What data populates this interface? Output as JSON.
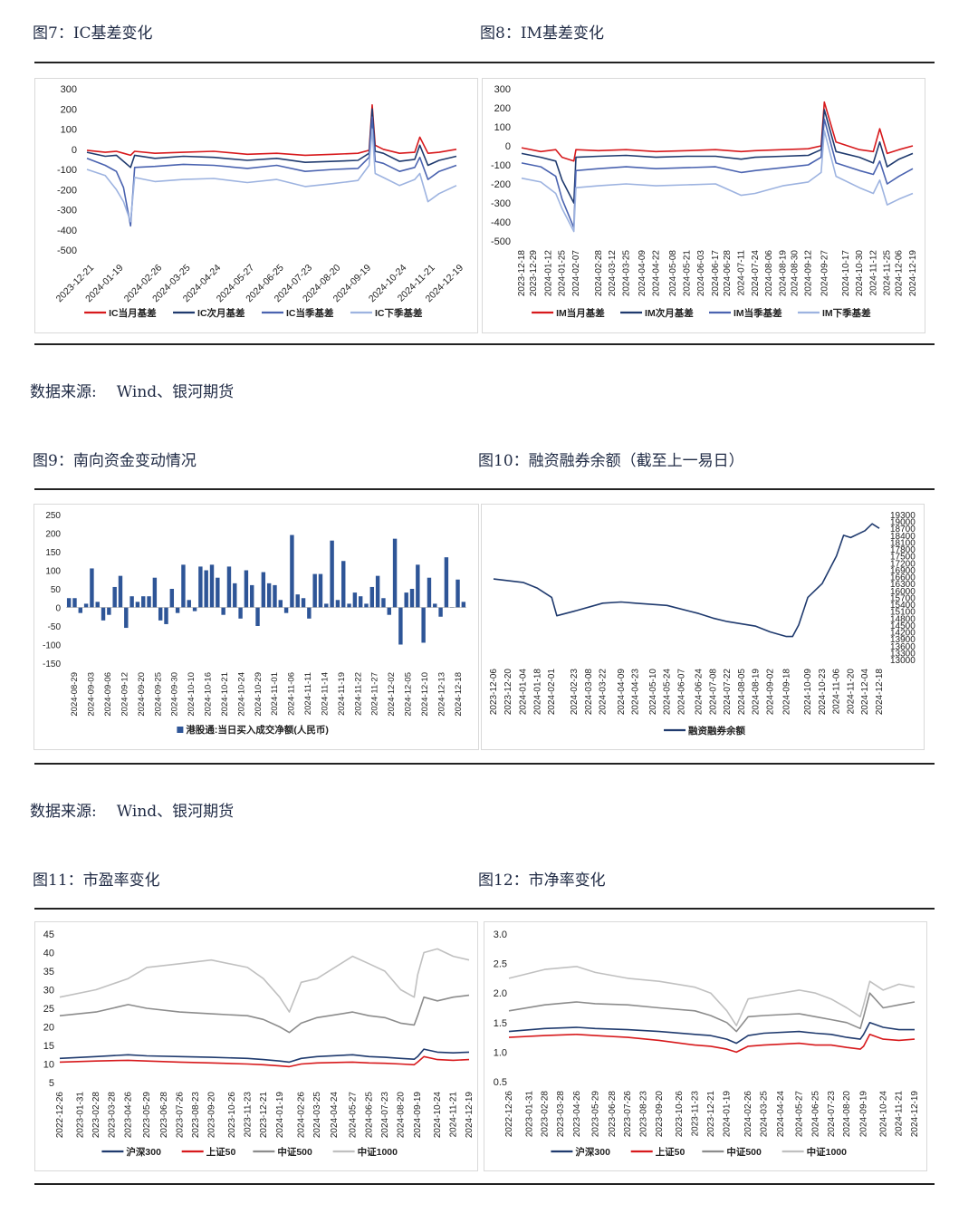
{
  "captions": {
    "c7": "图7：IC基差变化",
    "c8": "图8：IM基差变化",
    "c9": "图9：南向资金变动情况",
    "c10": "图10：融资融券余额（截至上一易日）",
    "c11": "图11：市盈率变化",
    "c12": "图12：市净率变化"
  },
  "source": {
    "label": "数据来源:",
    "text": "Wind、银河期货"
  },
  "chart_data": [
    {
      "id": "ic",
      "type": "line",
      "yticks": [
        300,
        200,
        100,
        0,
        -100,
        -200,
        -300,
        -400,
        -500
      ],
      "ylim": [
        -500,
        300
      ],
      "xticks": [
        "2023-12-21",
        "2024-01-19",
        "2024-02-26",
        "2024-03-25",
        "2024-04-24",
        "2024-05-27",
        "2024-06-25",
        "2024-07-23",
        "2024-08-20",
        "2024-09-19",
        "2024-10-24",
        "2024-11-21",
        "2024-12-19"
      ],
      "x": [
        "2023-12-21",
        "2024-01-08",
        "2024-01-19",
        "2024-01-26",
        "2024-02-02",
        "2024-02-06",
        "2024-02-26",
        "2024-03-25",
        "2024-04-24",
        "2024-05-27",
        "2024-06-25",
        "2024-07-23",
        "2024-08-20",
        "2024-09-13",
        "2024-09-24",
        "2024-09-27",
        "2024-09-30",
        "2024-10-08",
        "2024-10-24",
        "2024-11-08",
        "2024-11-13",
        "2024-11-21",
        "2024-12-02",
        "2024-12-19"
      ],
      "series": [
        {
          "name": "IC当月基差",
          "color": "#d7191c",
          "values": [
            -5,
            -15,
            -10,
            -20,
            -30,
            -10,
            -20,
            -15,
            -10,
            -25,
            -20,
            -30,
            -25,
            -20,
            -5,
            220,
            20,
            0,
            -20,
            -15,
            60,
            -20,
            -15,
            0
          ]
        },
        {
          "name": "IC次月基差",
          "color": "#1f3a6e",
          "values": [
            -15,
            -35,
            -30,
            -60,
            -90,
            -30,
            -45,
            -35,
            -40,
            -55,
            -45,
            -65,
            -60,
            -55,
            -20,
            200,
            -10,
            -20,
            -60,
            -50,
            20,
            -80,
            -55,
            -35
          ]
        },
        {
          "name": "IC当季基差",
          "color": "#4a63b0",
          "values": [
            -45,
            -80,
            -110,
            -190,
            -380,
            -90,
            -85,
            -75,
            -80,
            -95,
            -80,
            -110,
            -100,
            -95,
            -40,
            160,
            -60,
            -70,
            -110,
            -90,
            -40,
            -150,
            -110,
            -80
          ]
        },
        {
          "name": "IC下季基差",
          "color": "#9db3e0",
          "values": [
            -100,
            -130,
            -200,
            -260,
            -360,
            -140,
            -160,
            -150,
            -145,
            -165,
            -150,
            -185,
            -170,
            -155,
            -80,
            100,
            -120,
            -140,
            -180,
            -150,
            -120,
            -260,
            -220,
            -180
          ]
        }
      ]
    },
    {
      "id": "im",
      "type": "line",
      "yticks": [
        300,
        200,
        100,
        0,
        -100,
        -200,
        -300,
        -400,
        -500
      ],
      "ylim": [
        -500,
        300
      ],
      "xticks": [
        "2023-12-18",
        "2023-12-29",
        "2024-01-12",
        "2024-01-25",
        "2024-02-07",
        "2024-02-28",
        "2024-03-12",
        "2024-03-25",
        "2024-04-09",
        "2024-04-22",
        "2024-05-08",
        "2024-05-21",
        "2024-06-03",
        "2024-06-17",
        "2024-06-28",
        "2024-07-11",
        "2024-07-24",
        "2024-08-06",
        "2024-08-19",
        "2024-08-30",
        "2024-09-12",
        "2024-09-27",
        "2024-10-17",
        "2024-10-30",
        "2024-11-12",
        "2024-11-25",
        "2024-12-06",
        "2024-12-19"
      ],
      "x": [
        "2023-12-18",
        "2024-01-05",
        "2024-01-19",
        "2024-01-25",
        "2024-02-05",
        "2024-02-07",
        "2024-02-28",
        "2024-03-25",
        "2024-04-22",
        "2024-05-21",
        "2024-06-17",
        "2024-07-11",
        "2024-07-24",
        "2024-08-19",
        "2024-09-12",
        "2024-09-24",
        "2024-09-27",
        "2024-10-08",
        "2024-10-30",
        "2024-11-12",
        "2024-11-18",
        "2024-11-25",
        "2024-12-06",
        "2024-12-19"
      ],
      "series": [
        {
          "name": "IM当月基差",
          "color": "#d7191c",
          "values": [
            -10,
            -30,
            -20,
            -60,
            -80,
            -20,
            -25,
            -20,
            -30,
            -25,
            -20,
            -30,
            -25,
            -20,
            -15,
            0,
            230,
            20,
            -20,
            -30,
            90,
            -40,
            -20,
            0
          ]
        },
        {
          "name": "IM次月基差",
          "color": "#1f3a6e",
          "values": [
            -40,
            -60,
            -80,
            -180,
            -300,
            -60,
            -55,
            -50,
            -60,
            -55,
            -55,
            -70,
            -60,
            -55,
            -50,
            -20,
            190,
            -30,
            -60,
            -90,
            20,
            -110,
            -70,
            -40
          ]
        },
        {
          "name": "IM当季基差",
          "color": "#4a63b0",
          "values": [
            -90,
            -110,
            -160,
            -280,
            -430,
            -130,
            -120,
            -110,
            -120,
            -115,
            -110,
            -140,
            -130,
            -115,
            -100,
            -60,
            140,
            -90,
            -130,
            -150,
            -80,
            -200,
            -160,
            -120
          ]
        },
        {
          "name": "IM下季基差",
          "color": "#9db3e0",
          "values": [
            -170,
            -190,
            -250,
            -330,
            -450,
            -220,
            -210,
            -200,
            -210,
            -205,
            -200,
            -260,
            -250,
            -210,
            -190,
            -140,
            80,
            -160,
            -220,
            -250,
            -180,
            -310,
            -280,
            -250
          ]
        }
      ]
    },
    {
      "id": "south",
      "type": "bar",
      "yticks": [
        250,
        200,
        150,
        100,
        50,
        0,
        -50,
        -100,
        -150
      ],
      "ylim": [
        -150,
        250
      ],
      "xticks": [
        "2024-08-29",
        "2024-09-03",
        "2024-09-06",
        "2024-09-12",
        "2024-09-20",
        "2024-09-25",
        "2024-09-30",
        "2024-10-10",
        "2024-10-16",
        "2024-10-21",
        "2024-10-24",
        "2024-10-29",
        "2024-11-01",
        "2024-11-06",
        "2024-11-11",
        "2024-11-14",
        "2024-11-19",
        "2024-11-22",
        "2024-11-27",
        "2024-12-02",
        "2024-12-05",
        "2024-12-10",
        "2024-12-13",
        "2024-12-18"
      ],
      "values": [
        25,
        25,
        -15,
        10,
        105,
        15,
        -35,
        -20,
        55,
        85,
        -55,
        30,
        15,
        30,
        30,
        80,
        -35,
        -45,
        50,
        -15,
        115,
        20,
        -10,
        110,
        100,
        115,
        80,
        -20,
        110,
        65,
        -30,
        100,
        60,
        -50,
        95,
        65,
        60,
        20,
        -15,
        195,
        35,
        25,
        -30,
        90,
        90,
        10,
        180,
        20,
        125,
        10,
        40,
        30,
        10,
        55,
        85,
        25,
        -20,
        185,
        -100,
        40,
        50,
        115,
        -95,
        80,
        10,
        -25,
        135,
        0,
        75,
        15
      ],
      "legend": "港股通:当日买入成交净额(人民币)",
      "color": "#2e5597"
    },
    {
      "id": "margin",
      "type": "line",
      "yticks": [
        19300,
        19000,
        18700,
        18400,
        18100,
        17800,
        17500,
        17200,
        16900,
        16600,
        16300,
        16000,
        15700,
        15400,
        15100,
        14800,
        14500,
        14200,
        13900,
        13600,
        13300,
        13000
      ],
      "ylim": [
        13000,
        19300
      ],
      "xticks": [
        "2023-12-06",
        "2023-12-20",
        "2024-01-04",
        "2024-01-18",
        "2024-02-01",
        "2024-02-23",
        "2024-03-08",
        "2024-03-22",
        "2024-04-09",
        "2024-04-23",
        "2024-05-10",
        "2024-05-24",
        "2024-06-07",
        "2024-06-24",
        "2024-07-08",
        "2024-07-22",
        "2024-08-05",
        "2024-08-19",
        "2024-09-02",
        "2024-09-18",
        "2024-10-09",
        "2024-10-23",
        "2024-11-06",
        "2024-11-20",
        "2024-12-04",
        "2024-12-18"
      ],
      "x": [
        "2023-12-06",
        "2024-01-04",
        "2024-01-18",
        "2024-02-01",
        "2024-02-06",
        "2024-02-23",
        "2024-03-22",
        "2024-04-09",
        "2024-04-23",
        "2024-05-24",
        "2024-06-24",
        "2024-07-08",
        "2024-07-22",
        "2024-08-19",
        "2024-09-02",
        "2024-09-18",
        "2024-09-24",
        "2024-09-30",
        "2024-10-09",
        "2024-10-23",
        "2024-11-06",
        "2024-11-13",
        "2024-11-20",
        "2024-12-04",
        "2024-12-11",
        "2024-12-18"
      ],
      "series": [
        {
          "name": "融资融券余额",
          "color": "#1f3a6e",
          "values": [
            16500,
            16350,
            16100,
            15700,
            14900,
            15100,
            15450,
            15500,
            15450,
            15350,
            15000,
            14800,
            14650,
            14450,
            14200,
            14000,
            14000,
            14500,
            15700,
            16300,
            17500,
            18400,
            18300,
            18600,
            18900,
            18700
          ]
        }
      ]
    },
    {
      "id": "pe",
      "type": "line",
      "yticks": [
        45,
        40,
        35,
        30,
        25,
        20,
        15,
        10,
        5
      ],
      "ylim": [
        5,
        45
      ],
      "xticks": [
        "2022-12-26",
        "2023-01-31",
        "2023-02-28",
        "2023-03-28",
        "2023-04-26",
        "2023-05-29",
        "2023-06-28",
        "2023-07-26",
        "2023-08-23",
        "2023-09-20",
        "2023-10-26",
        "2023-11-23",
        "2023-12-21",
        "2024-01-19",
        "2024-02-26",
        "2024-03-25",
        "2024-04-24",
        "2024-05-27",
        "2024-06-25",
        "2024-07-23",
        "2024-08-20",
        "2024-09-19",
        "2024-10-24",
        "2024-11-21",
        "2024-12-19"
      ],
      "x": [
        "2022-12-26",
        "2023-02-28",
        "2023-04-26",
        "2023-05-29",
        "2023-07-26",
        "2023-09-20",
        "2023-11-23",
        "2023-12-21",
        "2024-01-19",
        "2024-02-05",
        "2024-02-26",
        "2024-03-25",
        "2024-05-27",
        "2024-06-25",
        "2024-07-23",
        "2024-08-20",
        "2024-09-13",
        "2024-09-19",
        "2024-09-30",
        "2024-10-24",
        "2024-11-21",
        "2024-12-19"
      ],
      "series": [
        {
          "name": "沪深300",
          "color": "#1f3a6e",
          "values": [
            11.5,
            12,
            12.5,
            12.2,
            12,
            11.8,
            11.5,
            11.2,
            10.8,
            10.5,
            11.5,
            12,
            12.5,
            12,
            11.8,
            11.5,
            11.3,
            12,
            14,
            13.2,
            13,
            13.2
          ]
        },
        {
          "name": "上证50",
          "color": "#d7191c",
          "values": [
            10.5,
            10.8,
            11,
            10.8,
            10.5,
            10.3,
            10,
            9.8,
            9.5,
            9.3,
            10,
            10.3,
            10.5,
            10.3,
            10.2,
            10,
            9.8,
            10.5,
            12,
            11.2,
            11,
            11.2
          ]
        },
        {
          "name": "中证500",
          "color": "#8c8c8c",
          "values": [
            23,
            24,
            26,
            25,
            24,
            23.5,
            23,
            22,
            20,
            18.5,
            21,
            22.5,
            24,
            23,
            22.5,
            21,
            20.5,
            23,
            28,
            27,
            28,
            28.5
          ]
        },
        {
          "name": "中证1000",
          "color": "#c0c0c0",
          "values": [
            28,
            30,
            33,
            36,
            37,
            38,
            36,
            33,
            28,
            24,
            32,
            33,
            39,
            37,
            35,
            30,
            28,
            34,
            40,
            41,
            39,
            38
          ]
        }
      ]
    },
    {
      "id": "pb",
      "type": "line",
      "yticks": [
        3.0,
        2.5,
        2.0,
        1.5,
        1.0,
        0.5
      ],
      "ylim": [
        0.5,
        3.0
      ],
      "xticks": [
        "2022-12-26",
        "2023-01-31",
        "2023-02-28",
        "2023-03-28",
        "2023-04-26",
        "2023-05-29",
        "2023-06-28",
        "2023-07-26",
        "2023-08-23",
        "2023-09-20",
        "2023-10-26",
        "2023-11-23",
        "2023-12-21",
        "2024-01-19",
        "2024-02-26",
        "2024-03-25",
        "2024-04-24",
        "2024-05-27",
        "2024-06-25",
        "2024-07-23",
        "2024-08-20",
        "2024-09-19",
        "2024-10-24",
        "2024-11-21",
        "2024-12-19"
      ],
      "x": [
        "2022-12-26",
        "2023-02-28",
        "2023-04-26",
        "2023-05-29",
        "2023-07-26",
        "2023-09-20",
        "2023-11-23",
        "2023-12-21",
        "2024-01-19",
        "2024-02-05",
        "2024-02-26",
        "2024-03-25",
        "2024-05-27",
        "2024-06-25",
        "2024-07-23",
        "2024-08-20",
        "2024-09-13",
        "2024-09-19",
        "2024-09-30",
        "2024-10-24",
        "2024-11-21",
        "2024-12-19"
      ],
      "series": [
        {
          "name": "沪深300",
          "color": "#1f3a6e",
          "values": [
            1.35,
            1.4,
            1.42,
            1.4,
            1.38,
            1.35,
            1.3,
            1.28,
            1.22,
            1.15,
            1.28,
            1.32,
            1.35,
            1.32,
            1.3,
            1.25,
            1.22,
            1.3,
            1.5,
            1.42,
            1.38,
            1.38
          ]
        },
        {
          "name": "上证50",
          "color": "#d7191c",
          "values": [
            1.25,
            1.28,
            1.3,
            1.28,
            1.25,
            1.2,
            1.12,
            1.1,
            1.05,
            1.0,
            1.1,
            1.12,
            1.15,
            1.12,
            1.12,
            1.08,
            1.05,
            1.1,
            1.3,
            1.22,
            1.2,
            1.22
          ]
        },
        {
          "name": "中证500",
          "color": "#8c8c8c",
          "values": [
            1.7,
            1.8,
            1.85,
            1.82,
            1.8,
            1.75,
            1.7,
            1.62,
            1.5,
            1.35,
            1.6,
            1.62,
            1.65,
            1.6,
            1.55,
            1.5,
            1.4,
            1.6,
            2.0,
            1.75,
            1.8,
            1.85
          ]
        },
        {
          "name": "中证1000",
          "color": "#c0c0c0",
          "values": [
            2.25,
            2.4,
            2.45,
            2.35,
            2.25,
            2.2,
            2.1,
            2.0,
            1.7,
            1.45,
            1.9,
            1.95,
            2.05,
            2.0,
            1.9,
            1.75,
            1.6,
            1.8,
            2.2,
            2.05,
            2.15,
            2.1
          ]
        }
      ]
    }
  ]
}
